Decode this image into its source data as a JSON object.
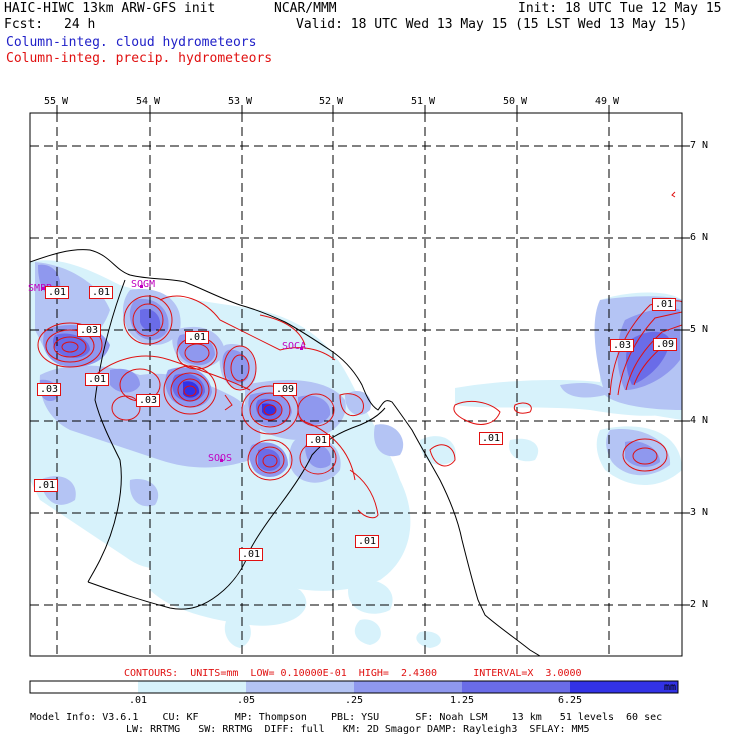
{
  "header": {
    "model": "HAIC-HIWC 13km ARW-GFS init",
    "org": "NCAR/MMM",
    "init": "Init: 18 UTC Tue 12 May 15",
    "fcst_label": "Fcst:",
    "fcst_value": "24 h",
    "valid": "Valid: 18 UTC Wed 13 May 15 (15 LST Wed 13 May 15)",
    "field1": "Column-integ. cloud hydrometeors",
    "field2": "Column-integ. precip. hydrometeors"
  },
  "colors": {
    "field1": "#2020c8",
    "field2": "#e01010",
    "shade1": "#d7f2fb",
    "shade2": "#b4c4f4",
    "shade3": "#8f98ee",
    "shade4": "#6a6ce8",
    "shade5": "#3232e6",
    "contour": "#e01010",
    "station": "#c000c0"
  },
  "map": {
    "lon_labels": [
      "55 W",
      "54 W",
      "53 W",
      "52 W",
      "51 W",
      "50 W",
      "49 W"
    ],
    "lat_labels": [
      "7 N",
      "6 N",
      "5 N",
      "4 N",
      "3 N",
      "2 N"
    ],
    "stations": [
      "SMPB",
      "SOGM",
      "SOCA",
      "SOOS"
    ],
    "contour_labels": [
      ".01",
      ".01",
      ".03",
      ".01",
      ".01",
      ".03",
      ".03",
      ".09",
      ".01",
      ".01",
      ".01",
      ".01",
      ".01",
      ".03",
      ".09",
      ".01"
    ]
  },
  "contours_info": "CONTOURS:  UNITS=mm  LOW= 0.10000E-01  HIGH=  2.4300      INTERVAL=X  3.0000",
  "colorbar": {
    "ticks": [
      ".01",
      ".05",
      ".25",
      "1.25",
      "6.25"
    ],
    "unit": "mm"
  },
  "footer": {
    "line1": "Model Info: V3.6.1    CU: KF      MP: Thompson    PBL: YSU      SF: Noah LSM    13 km   51 levels  60 sec",
    "line2": "LW: RRTMG   SW: RRTMG  DIFF: full   KM: 2D Smagor DAMP: Rayleigh3  SFLAY: MM5"
  }
}
